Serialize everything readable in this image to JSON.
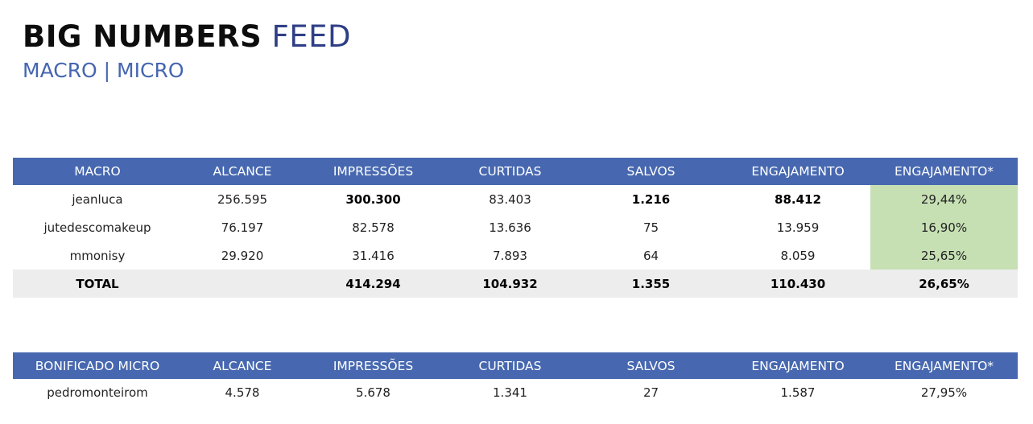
{
  "header": {
    "title_bold": "BIG NUMBERS",
    "title_light": "FEED",
    "subtitle": "MACRO | MICRO"
  },
  "macro_table": {
    "columns": [
      "MACRO",
      "ALCANCE",
      "IMPRESSÕES",
      "CURTIDAS",
      "SALVOS",
      "ENGAJAMENTO",
      "ENGAJAMENTO*"
    ],
    "rows": [
      [
        "jeanluca",
        "256.595",
        "300.300",
        "83.403",
        "1.216",
        "88.412",
        "29,44%"
      ],
      [
        "jutedescomakeup",
        "76.197",
        "82.578",
        "13.636",
        "75",
        "13.959",
        "16,90%"
      ],
      [
        "mmonisy",
        "29.920",
        "31.416",
        "7.893",
        "64",
        "8.059",
        "25,65%"
      ]
    ],
    "total": [
      "TOTAL",
      "",
      "414.294",
      "104.932",
      "1.355",
      "110.430",
      "26,65%"
    ]
  },
  "micro_table": {
    "columns": [
      "BONIFICADO MICRO",
      "ALCANCE",
      "IMPRESSÕES",
      "CURTIDAS",
      "SALVOS",
      "ENGAJAMENTO",
      "ENGAJAMENTO*"
    ],
    "rows": [
      [
        "pedromonteirom",
        "4.578",
        "5.678",
        "1.341",
        "27",
        "1.587",
        "27,95%"
      ]
    ]
  },
  "colors": {
    "header_blue": "#4768b0",
    "title_navy": "#2f3f86",
    "subtitle_blue": "#4566b0",
    "engagement_highlight_green": "#c6e0b4",
    "total_row_gray": "#ededed"
  }
}
